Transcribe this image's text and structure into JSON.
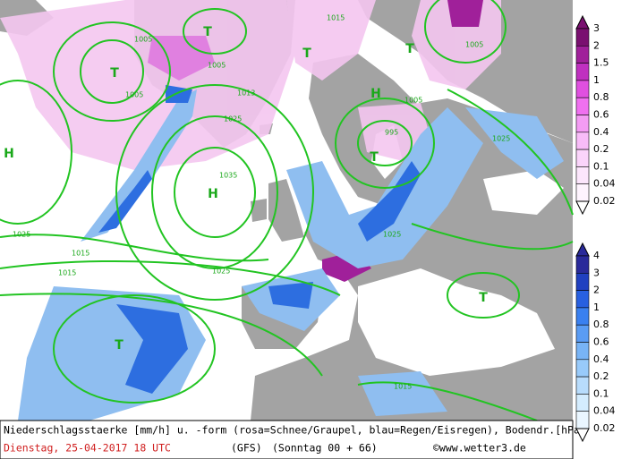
{
  "map": {
    "isobar_labels": [
      "1005",
      "1015",
      "1005",
      "1005",
      "1013",
      "1025",
      "1035",
      "1025",
      "1015",
      "1025",
      "995",
      "1005",
      "1025",
      "1025",
      "1015",
      "1005",
      "1015"
    ],
    "pressure_centers": [
      "H",
      "T",
      "T",
      "T",
      "H",
      "T",
      "T",
      "H",
      "T",
      "T"
    ]
  },
  "legend": {
    "snow": [
      "3",
      "2",
      "1.5",
      "1",
      "0.8",
      "0.6",
      "0.4",
      "0.2",
      "0.1",
      "0.04",
      "0.02"
    ],
    "rain": [
      "4",
      "3",
      "2",
      "1",
      "0.8",
      "0.6",
      "0.4",
      "0.2",
      "0.1",
      "0.04",
      "0.02"
    ]
  },
  "footer": {
    "description": "Niederschlagsstaerke [mm/h] u. -form (rosa=Schnee/Graupel, blau=Regen/Eisregen), Bodendr.[hPa]",
    "valid_time": "Dienstag, 25-04-2017  18 UTC",
    "model": "(GFS)",
    "run": "(Sonntag 00 + 66)",
    "copyright": "©www.wetter3.de"
  }
}
